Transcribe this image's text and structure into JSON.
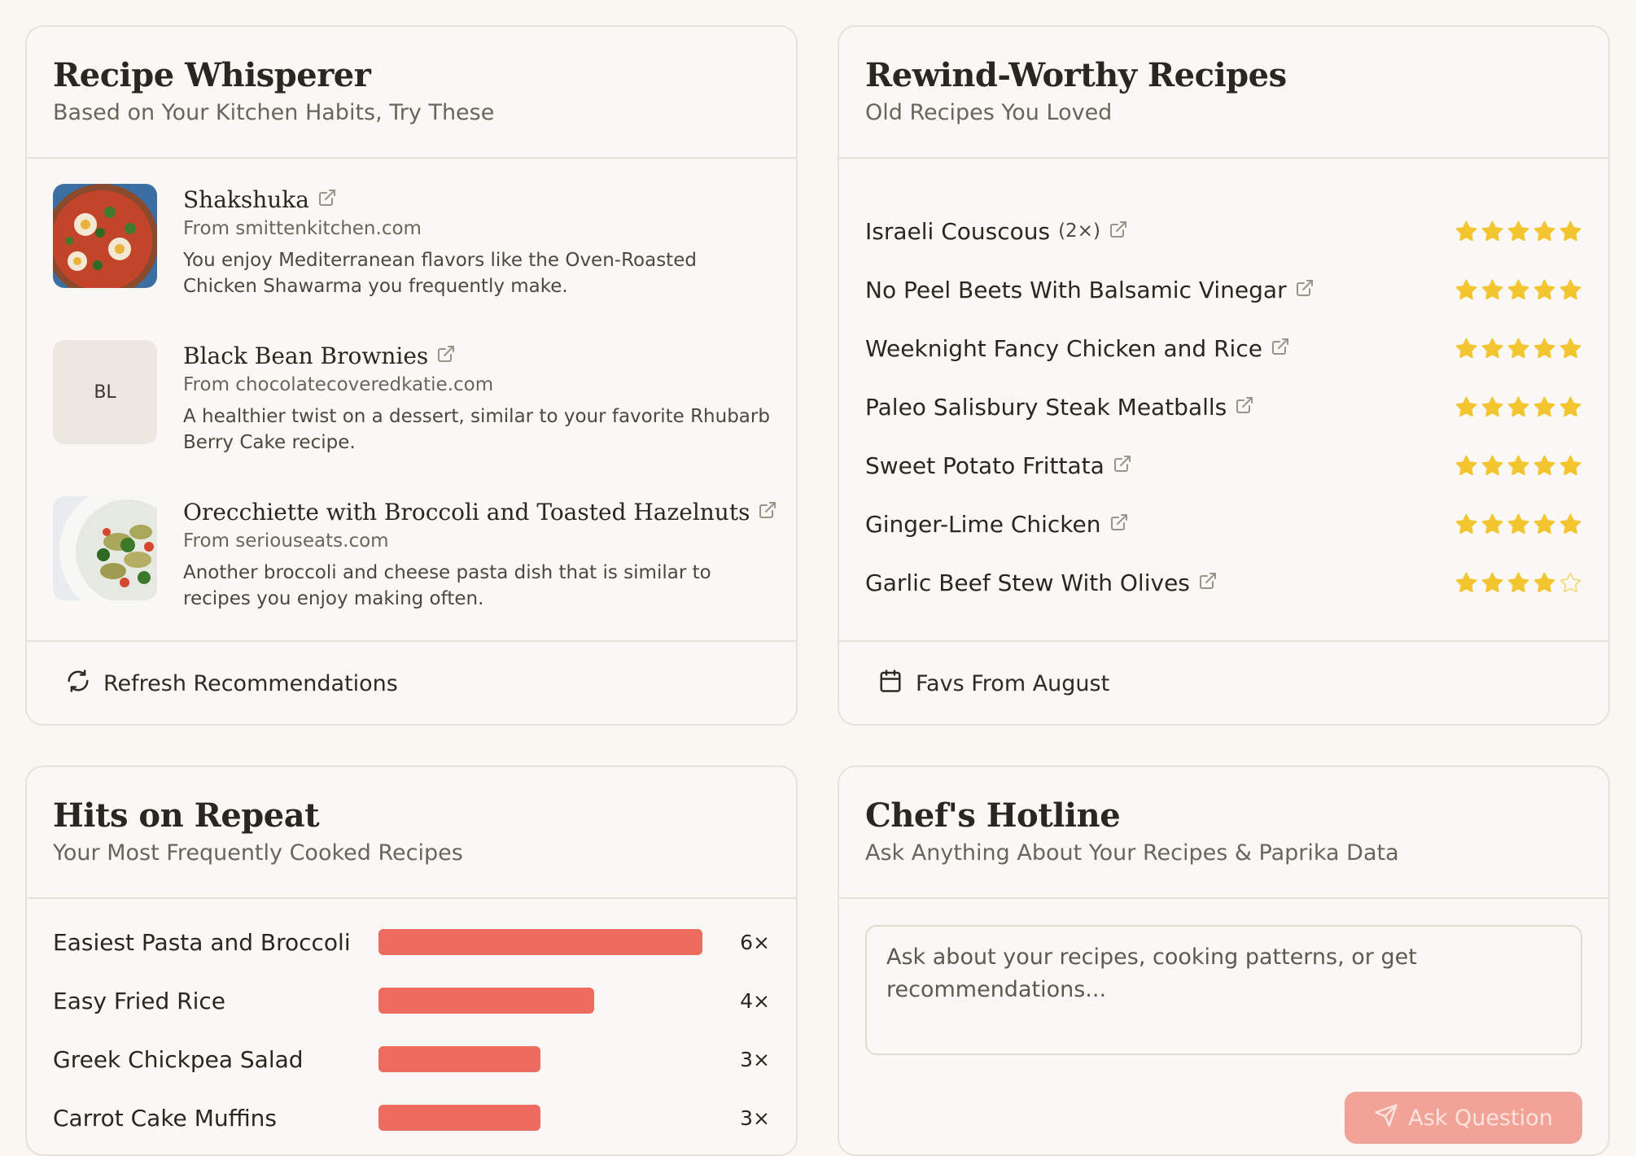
{
  "whisperer": {
    "title": "Recipe Whisperer",
    "subtitle": "Based on Your Kitchen Habits, Try These",
    "items": [
      {
        "name": "Shakshuka",
        "source": "From smittenkitchen.com",
        "description": "You enjoy Mediterranean flavors like the Oven-Roasted Chicken Shawarma you frequently make.",
        "thumb": "photo"
      },
      {
        "name": "Black Bean Brownies",
        "source": "From chocolatecoveredkatie.com",
        "description": "A healthier twist on a dessert, similar to your favorite Rhubarb Berry Cake recipe.",
        "thumb_text": "BL"
      },
      {
        "name": "Orecchiette with Broccoli and Toasted Hazelnuts",
        "source": "From seriouseats.com",
        "description": "Another broccoli and cheese pasta dish that is similar to recipes you enjoy making often.",
        "thumb": "photo"
      }
    ],
    "footer_label": "Refresh Recommendations",
    "footer_icon": "refresh-icon"
  },
  "rewind": {
    "title": "Rewind-Worthy Recipes",
    "subtitle": "Old Recipes You Loved",
    "items": [
      {
        "name": "Israeli Couscous",
        "count": "(2×)",
        "rating": 5
      },
      {
        "name": "No Peel Beets With Balsamic Vinegar",
        "rating": 5
      },
      {
        "name": "Weeknight Fancy Chicken and Rice",
        "rating": 5
      },
      {
        "name": "Paleo Salisbury Steak Meatballs",
        "rating": 5
      },
      {
        "name": "Sweet Potato Frittata",
        "rating": 5
      },
      {
        "name": "Ginger-Lime Chicken",
        "rating": 5
      },
      {
        "name": "Garlic Beef Stew With Olives",
        "rating": 4
      }
    ],
    "footer_label": "Favs From August",
    "footer_icon": "calendar-icon"
  },
  "hits": {
    "title": "Hits on Repeat",
    "subtitle": "Your Most Frequently Cooked Recipes",
    "items": [
      {
        "name": "Easiest Pasta and Broccoli",
        "count": 6,
        "label": "6×"
      },
      {
        "name": "Easy Fried Rice",
        "count": 4,
        "label": "4×"
      },
      {
        "name": "Greek Chickpea Salad",
        "count": 3,
        "label": "3×"
      },
      {
        "name": "Carrot Cake Muffins",
        "count": 3,
        "label": "3×"
      }
    ],
    "max": 6
  },
  "hotline": {
    "title": "Chef's Hotline",
    "subtitle": "Ask Anything About Your Recipes & Paprika Data",
    "placeholder": "Ask about your recipes, cooking patterns, or get recommendations...",
    "button_label": "Ask Question"
  },
  "colors": {
    "accent": "#ed6b5f",
    "star": "#f2c531",
    "background": "#faf7f2",
    "border": "#e6e1d9"
  }
}
